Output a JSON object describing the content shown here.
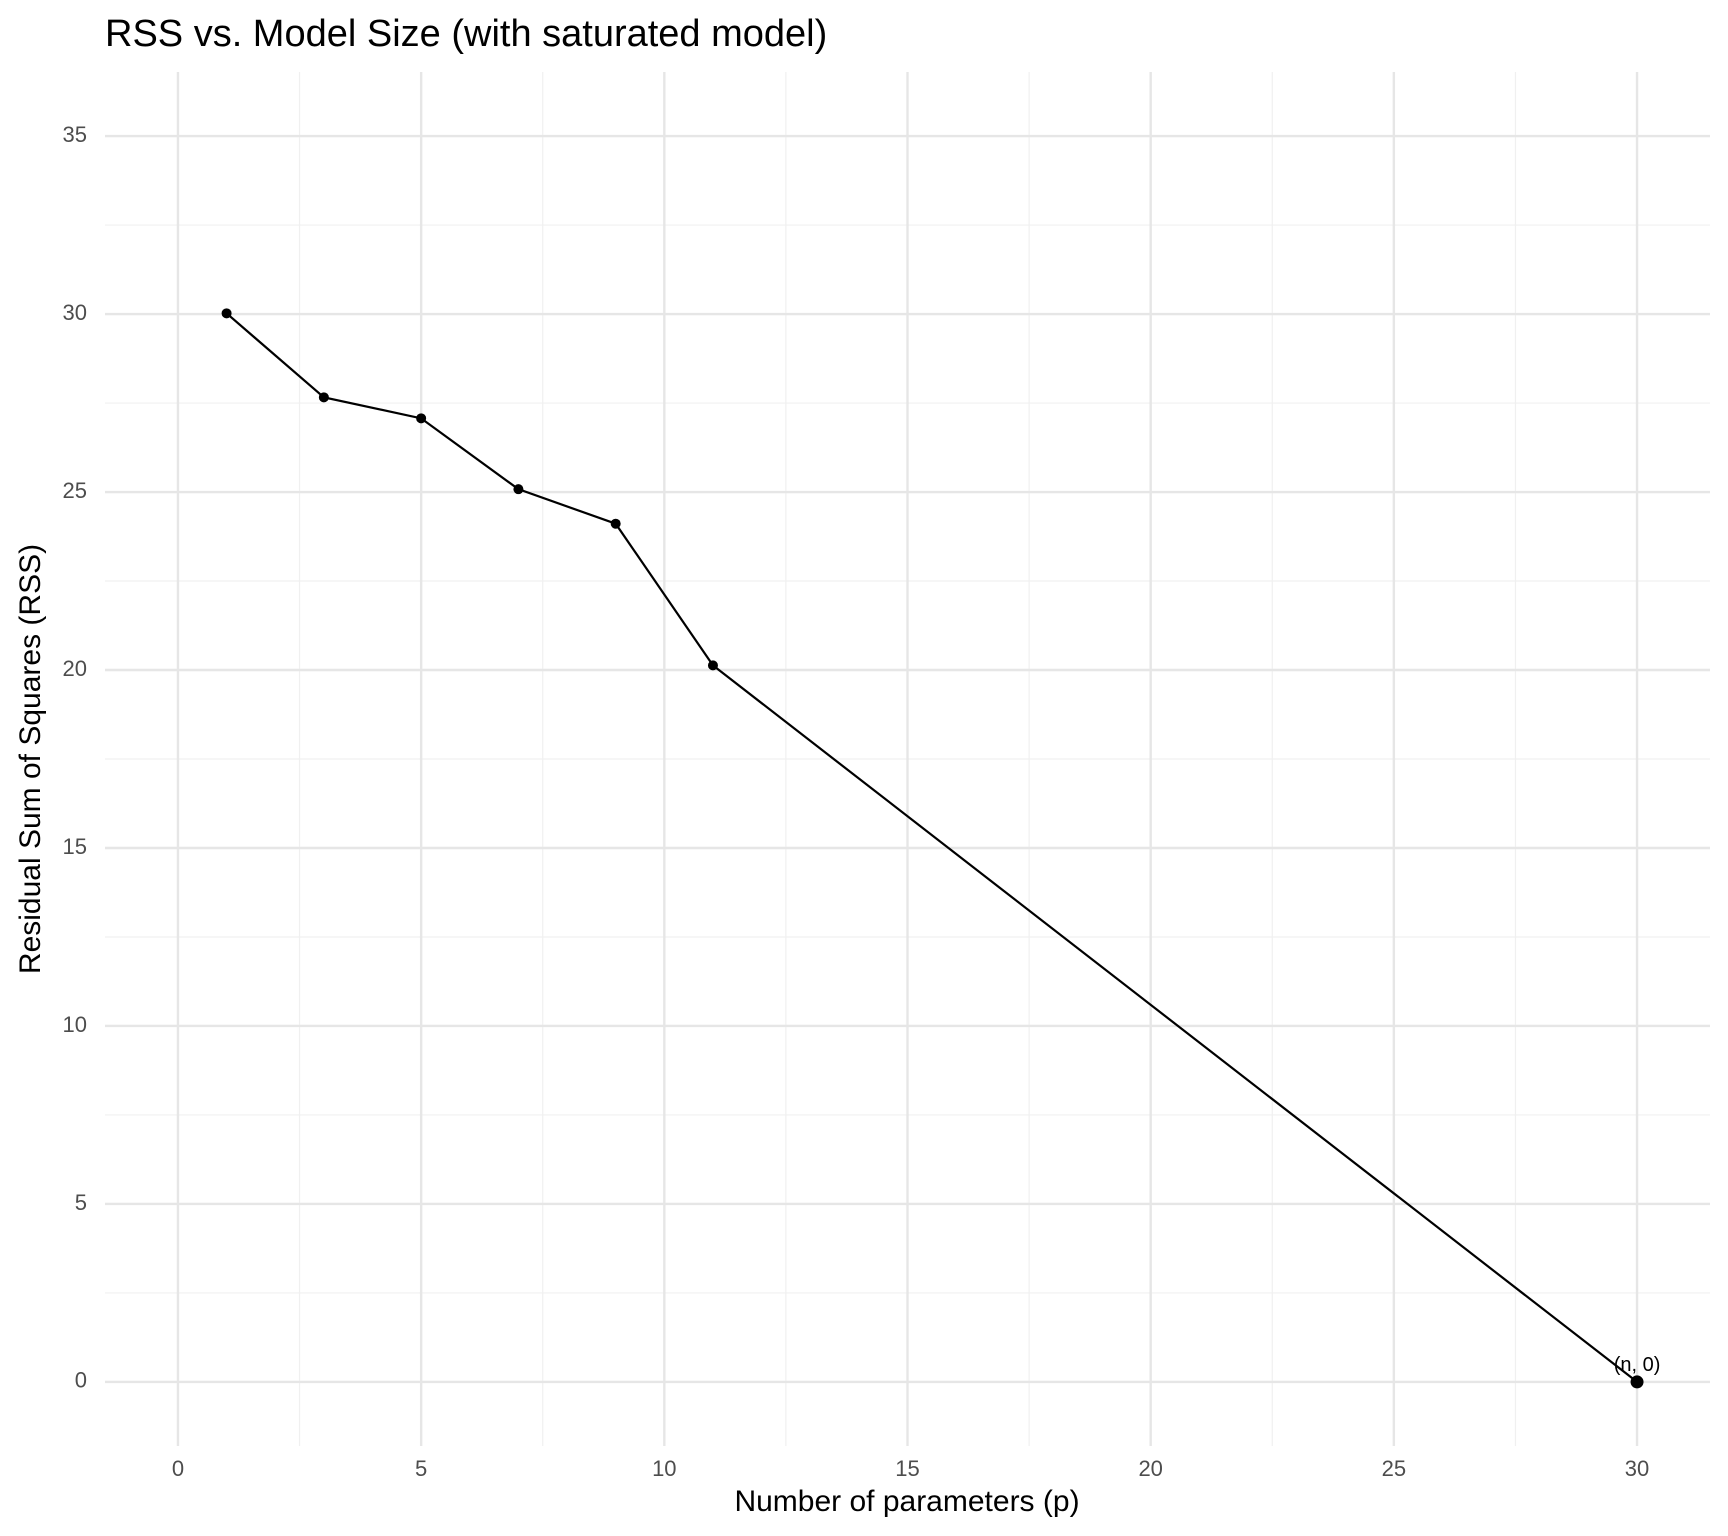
{
  "chart_data": {
    "type": "line",
    "title": "RSS vs. Model Size (with saturated model)",
    "x_label": "Number of parameters (p)",
    "y_label": "Residual Sum of Squares (RSS)",
    "series": [
      {
        "name": "RSS",
        "color": "#000000",
        "x": [
          1,
          3,
          5,
          7,
          9,
          11,
          30
        ],
        "values": [
          30.02,
          27.66,
          27.07,
          25.08,
          24.11,
          20.13,
          0
        ]
      }
    ],
    "annotations": [
      {
        "text": "(n, 0)",
        "x": 30,
        "y": 0
      }
    ],
    "xlim": [
      -1.5,
      31.5
    ],
    "xticks": [
      0,
      5,
      10,
      15,
      20,
      25,
      30
    ],
    "ylim": [
      -1.8,
      36.8
    ],
    "yticks": [
      0,
      5,
      10,
      15,
      20,
      25,
      30,
      35
    ],
    "grid": true
  }
}
